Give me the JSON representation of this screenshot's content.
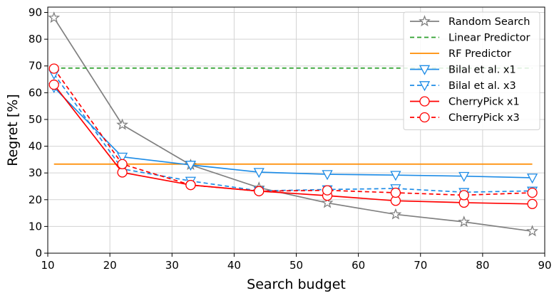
{
  "chart_data": {
    "type": "line",
    "xlabel": "Search budget",
    "ylabel": "Regret [%]",
    "xlim": [
      10,
      90
    ],
    "ylim": [
      0,
      92
    ],
    "xticks": [
      10,
      20,
      30,
      40,
      50,
      60,
      70,
      80,
      90
    ],
    "yticks": [
      0,
      10,
      20,
      30,
      40,
      50,
      60,
      70,
      80,
      90
    ],
    "grid": true,
    "legend_position": "top-right",
    "series": [
      {
        "name": "Random Search",
        "color": "#808080",
        "dash": "solid",
        "marker": "star",
        "x": [
          11,
          22,
          33,
          44,
          55,
          66,
          77,
          88
        ],
        "y": [
          88,
          48,
          33,
          24.5,
          18.8,
          14.5,
          11.7,
          8.2
        ]
      },
      {
        "name": "Linear Predictor",
        "color": "#2ca02c",
        "dash": "dashed",
        "marker": "none",
        "x": [
          11,
          88
        ],
        "y": [
          69.2,
          69.2
        ]
      },
      {
        "name": "RF Predictor",
        "color": "#ff8c00",
        "dash": "solid",
        "marker": "none",
        "x": [
          11,
          88
        ],
        "y": [
          33.3,
          33.3
        ]
      },
      {
        "name": "Bilal et al. x1",
        "color": "#1e8ce6",
        "dash": "solid",
        "marker": "triangle-down",
        "x": [
          11,
          22,
          33,
          44,
          55,
          66,
          77,
          88
        ],
        "y": [
          62,
          36,
          33,
          30.3,
          29.5,
          29.2,
          28.8,
          28.2
        ]
      },
      {
        "name": "Bilal et al. x3",
        "color": "#1e8ce6",
        "dash": "dashed",
        "marker": "triangle-down",
        "x": [
          11,
          22,
          33,
          44,
          55,
          66,
          77,
          88
        ],
        "y": [
          67,
          31.5,
          27,
          23.3,
          23.8,
          24.2,
          22.8,
          23.3
        ]
      },
      {
        "name": "CherryPick x1",
        "color": "#ff0000",
        "dash": "solid",
        "marker": "circle",
        "x": [
          11,
          22,
          33,
          44,
          55,
          66,
          77,
          88
        ],
        "y": [
          63,
          30.2,
          25.5,
          23.2,
          21.5,
          19.6,
          18.9,
          18.4
        ]
      },
      {
        "name": "CherryPick x3",
        "color": "#ff0000",
        "dash": "dashed",
        "marker": "circle",
        "x": [
          11,
          22,
          33,
          44,
          55,
          66,
          77,
          88
        ],
        "y": [
          69,
          33.3,
          25.5,
          23.2,
          23.5,
          22.6,
          21.7,
          22.6
        ]
      }
    ]
  }
}
